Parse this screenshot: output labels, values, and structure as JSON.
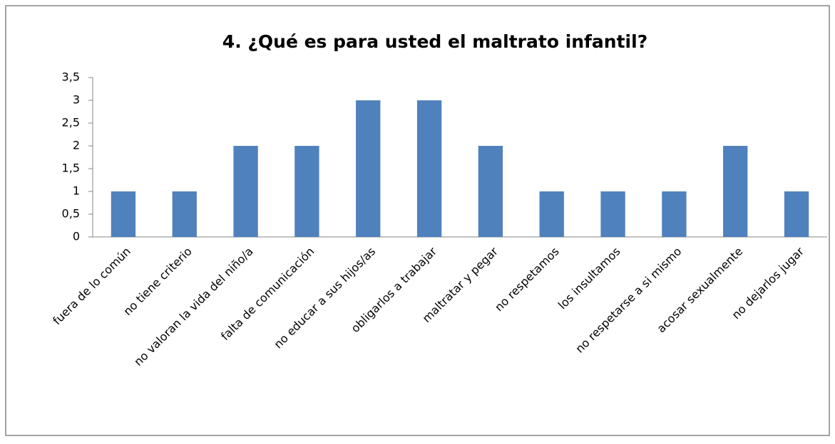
{
  "chart_data": {
    "type": "bar",
    "title": "4. ¿Qué es para usted el maltrato infantil?",
    "categories": [
      "fuera de lo común",
      "no tiene criterio",
      "no valoran la vida del niño/a",
      "falta de comunicación",
      "no educar a sus hijos/as",
      "obligarlos a trabajar",
      "maltratar y pegar",
      "no respetamos",
      "los insultamos",
      "no respetarse a si mismo",
      "acosar sexualmente",
      "no dejarlos jugar"
    ],
    "values": [
      1,
      1,
      2,
      2,
      3,
      3,
      2,
      1,
      1,
      1,
      2,
      1
    ],
    "color": "#4f81bd",
    "ylim": [
      0,
      3.5
    ],
    "yticks": [
      0,
      {
        "value": 0.5,
        "label": "0,5"
      },
      1,
      {
        "value": 1.5,
        "label": "1,5"
      },
      2,
      {
        "value": 2.5,
        "label": "2,5"
      },
      3,
      {
        "value": 3.5,
        "label": "3,5"
      }
    ],
    "grid": false
  }
}
